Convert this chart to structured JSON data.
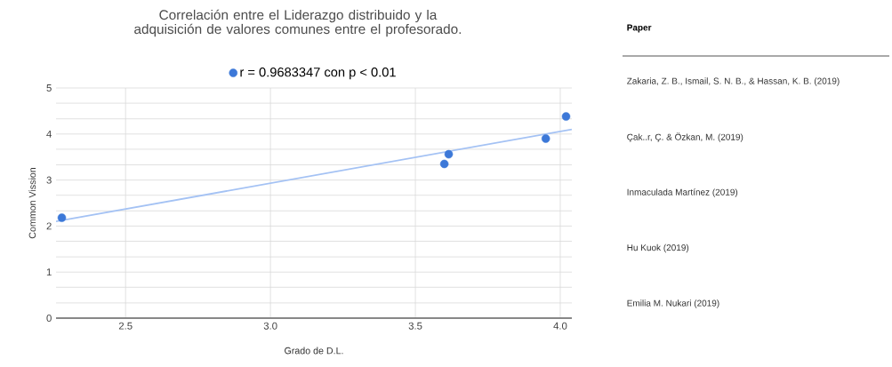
{
  "chart_data": [
    {
      "type": "scatter",
      "title": "Correlación entre el Liderazgo distribuido y la adquisición de valores comunes entre el profesorado.",
      "xlabel": "Grado de D.L.",
      "ylabel": "Common Vission",
      "xlim": [
        2.26,
        4.04
      ],
      "ylim": [
        0,
        5
      ],
      "xticks": [
        {
          "value": 2.5,
          "label": "2.5"
        },
        {
          "value": 3,
          "label": "3.0"
        },
        {
          "value": 3.5,
          "label": "3.5"
        },
        {
          "value": 4,
          "label": "4.0"
        }
      ],
      "yticks": [
        0,
        {
          "value": 0.33,
          "label": null
        },
        {
          "value": 0.67,
          "label": null
        },
        1,
        {
          "value": 1.33,
          "label": null
        },
        {
          "value": 1.67,
          "label": null
        },
        2,
        {
          "value": 2.33,
          "label": null
        },
        {
          "value": 2.67,
          "label": null
        },
        3,
        {
          "value": 3.33,
          "label": null
        },
        {
          "value": 3.67,
          "label": null
        },
        4,
        {
          "value": 4.33,
          "label": null
        },
        {
          "value": 4.67,
          "label": null
        },
        5
      ],
      "grid": true,
      "legend": "top",
      "series": [
        {
          "name": "r = 0.9683347  con p < 0.01",
          "type": "scatter",
          "color": "#3c78d8",
          "marker": "circle",
          "x": [
            2.28,
            3.6,
            3.615,
            3.95,
            4.02
          ],
          "values": [
            2.18,
            3.35,
            3.56,
            3.9,
            4.38
          ]
        },
        {
          "type": "line",
          "color": "#a4c2f4",
          "marker": "none",
          "x": [
            2.26,
            4.04
          ],
          "values": [
            2.1,
            4.1
          ]
        }
      ]
    },
    {
      "type": "other",
      "title": "Paper",
      "annotations": [
        "Zakaria, Z. B., Ismail, S. N. B., & Hassan, K. B. (2019)",
        "Çak..r, Ç. & Özkan, M. (2019)",
        "Inmaculada Martínez (2019)",
        "Hu Kuok (2019)",
        "Emilia M. Nukari (2019)"
      ]
    }
  ]
}
